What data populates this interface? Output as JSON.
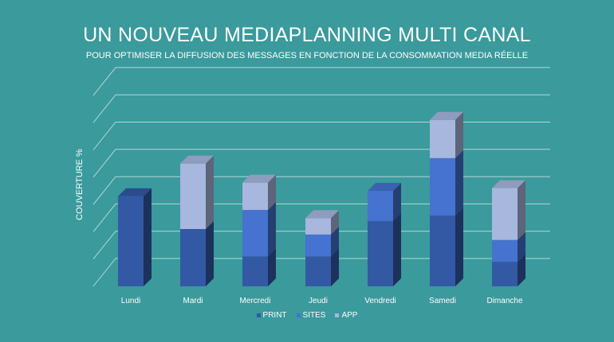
{
  "chart_data": {
    "type": "bar",
    "stacked": true,
    "three_d": true,
    "title": "UN NOUVEAU MEDIAPLANNING MULTI CANAL",
    "subtitle": "POUR OPTIMISER LA DIFFUSION DES MESSAGES EN FONCTION DE LA CONSOMMATION MEDIA RÉELLE",
    "xlabel": "",
    "ylabel": "COUVERTURE %",
    "ylim": [
      0,
      7
    ],
    "grid": true,
    "legend_position": "bottom",
    "categories": [
      "Lundi",
      "Mardi",
      "Mercredi",
      "Jeudi",
      "Vendredi",
      "Samedi",
      "Dimanche"
    ],
    "series": [
      {
        "name": "PRINT",
        "color": "#3359A5",
        "values": [
          3.3,
          2.1,
          1.1,
          1.1,
          2.4,
          2.6,
          0.9
        ]
      },
      {
        "name": "SITES",
        "color": "#4573CF",
        "values": [
          0,
          0,
          1.7,
          0.8,
          1.1,
          2.1,
          0.8
        ]
      },
      {
        "name": "APP",
        "color": "#A7B7DE",
        "values": [
          0,
          2.4,
          1.0,
          0.6,
          0,
          1.4,
          1.9
        ]
      }
    ]
  }
}
